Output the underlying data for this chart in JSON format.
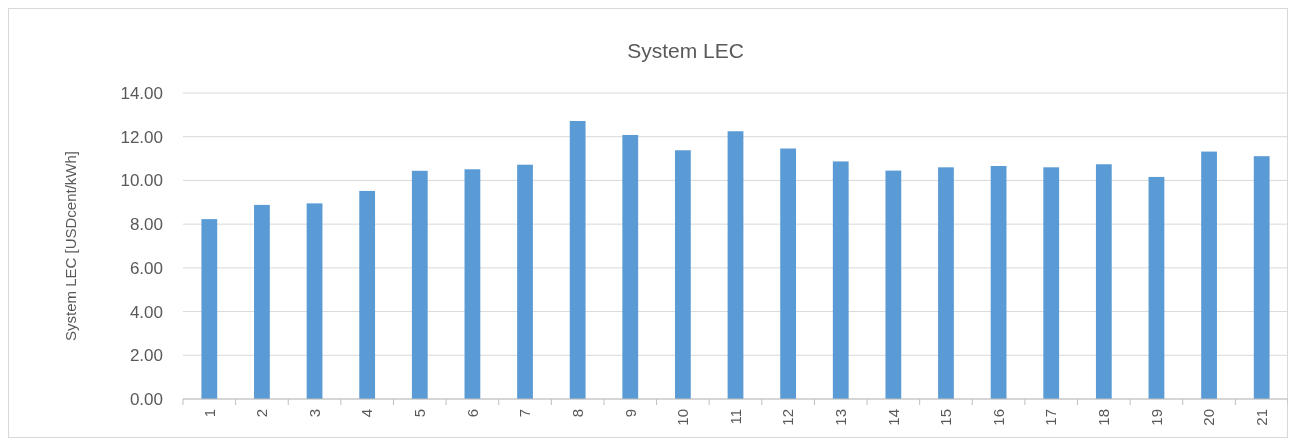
{
  "chart_data": {
    "type": "bar",
    "title": "System LEC",
    "ylabel": "System LEC [USDcent/kWh]",
    "categories": [
      "1",
      "2",
      "3",
      "4",
      "5",
      "6",
      "7",
      "8",
      "9",
      "10",
      "11",
      "12",
      "13",
      "14",
      "15",
      "16",
      "17",
      "18",
      "19",
      "20",
      "21"
    ],
    "values": [
      8.23,
      8.88,
      8.95,
      9.52,
      10.44,
      10.51,
      10.72,
      12.72,
      12.08,
      11.38,
      12.25,
      11.46,
      10.87,
      10.45,
      10.6,
      10.66,
      10.6,
      10.74,
      10.16,
      11.32,
      11.11
    ],
    "color": "#5b9bd5",
    "ylim": [
      0,
      14
    ],
    "yticks": [
      {
        "value": 0,
        "label": "0.00"
      },
      {
        "value": 2,
        "label": "2.00"
      },
      {
        "value": 4,
        "label": "4.00"
      },
      {
        "value": 6,
        "label": "6.00"
      },
      {
        "value": 8,
        "label": "8.00"
      },
      {
        "value": 10,
        "label": "10.00"
      },
      {
        "value": 12,
        "label": "12.00"
      },
      {
        "value": 14,
        "label": "14.00"
      }
    ],
    "grid": "y"
  }
}
